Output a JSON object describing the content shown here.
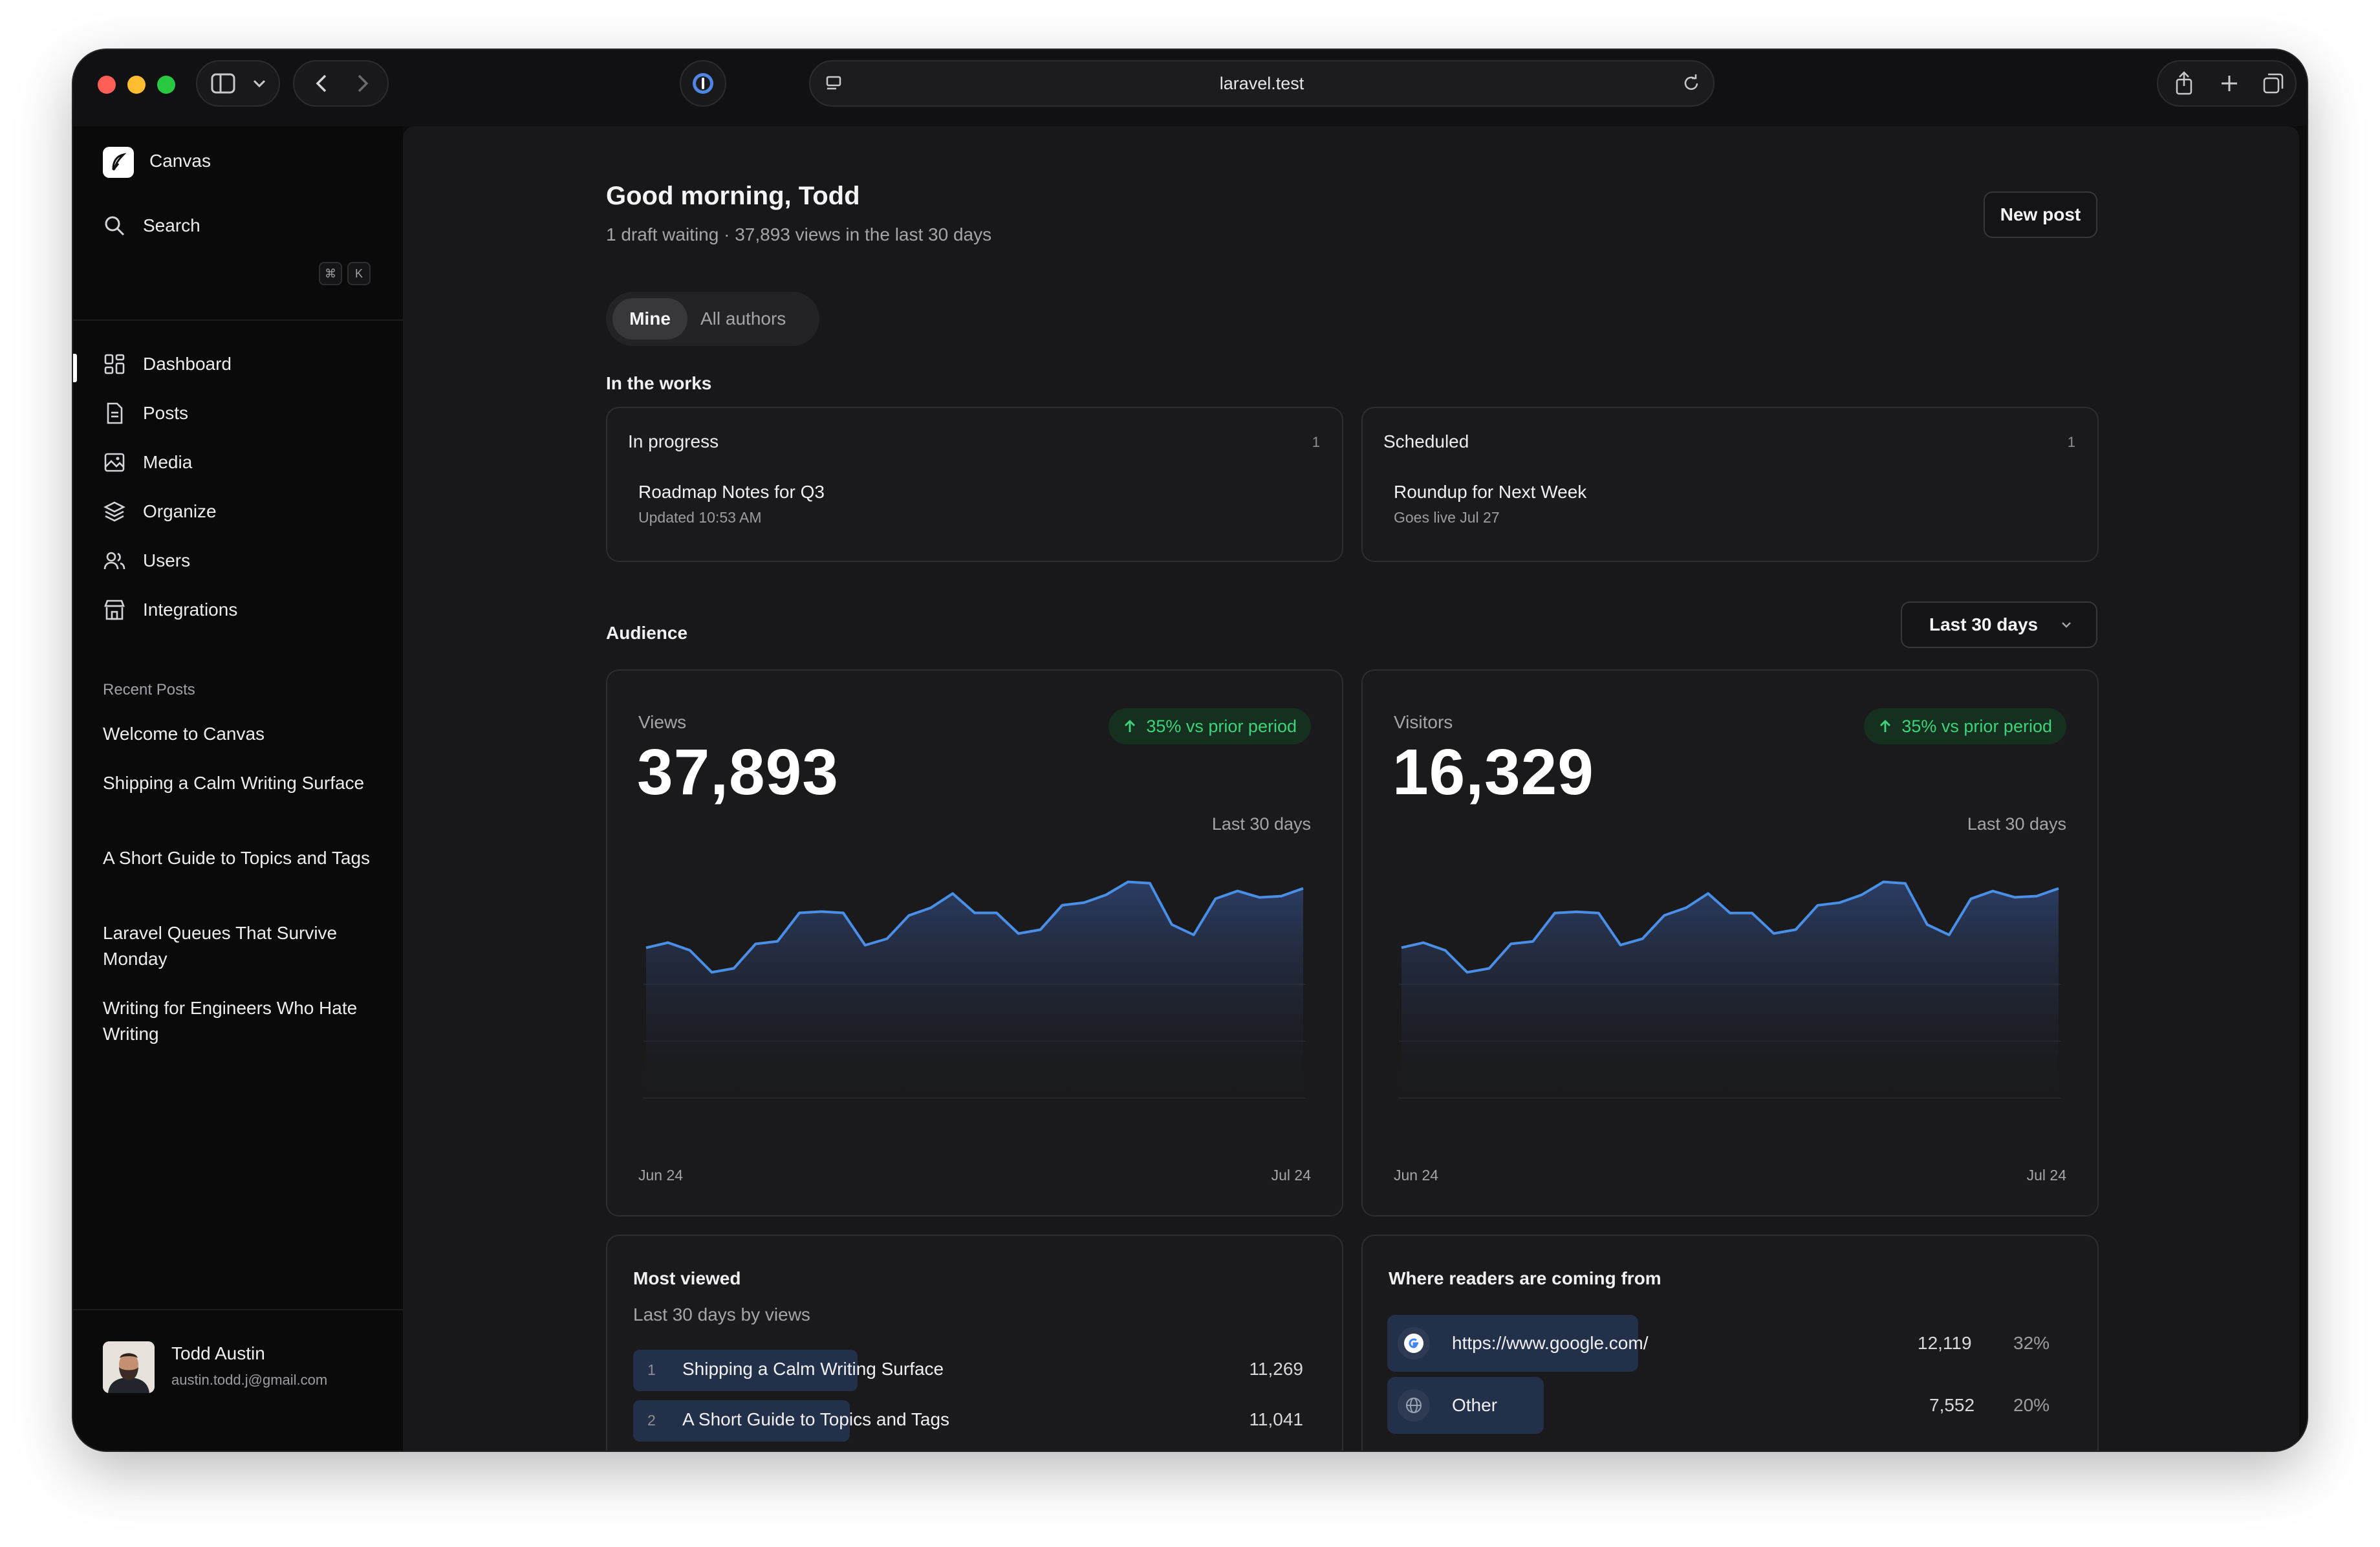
{
  "browser": {
    "url": "laravel.test"
  },
  "sidebar": {
    "app_name": "Canvas",
    "search_label": "Search",
    "search_shortcut": [
      "⌘",
      "K"
    ],
    "nav": [
      {
        "label": "Dashboard",
        "icon": "dashboard-icon",
        "active": true
      },
      {
        "label": "Posts",
        "icon": "document-icon"
      },
      {
        "label": "Media",
        "icon": "image-icon"
      },
      {
        "label": "Organize",
        "icon": "layers-icon"
      },
      {
        "label": "Users",
        "icon": "users-icon"
      },
      {
        "label": "Integrations",
        "icon": "store-icon"
      }
    ],
    "recent_title": "Recent Posts",
    "recent_posts": [
      "Welcome to Canvas",
      "Shipping a Calm Writing Surface",
      "A Short Guide to Topics and Tags",
      "Laravel Queues That Survive Monday",
      "Writing for Engineers Who Hate Writing"
    ],
    "user": {
      "name": "Todd Austin",
      "email": "austin.todd.j@gmail.com"
    }
  },
  "header": {
    "greeting": "Good morning, Todd",
    "subline": "1 draft waiting · 37,893 views in the last 30 days",
    "new_post": "New post"
  },
  "filter": {
    "mine": "Mine",
    "all": "All authors",
    "selected": "Mine"
  },
  "works": {
    "title": "In the works",
    "in_progress": {
      "label": "In progress",
      "count": "1",
      "item_title": "Roadmap Notes for Q3",
      "item_meta": "Updated 10:53 AM"
    },
    "scheduled": {
      "label": "Scheduled",
      "count": "1",
      "item_title": "Roundup for Next Week",
      "item_meta": "Goes live Jul 27"
    }
  },
  "audience": {
    "title": "Audience",
    "range": "Last 30 days",
    "views": {
      "label": "Views",
      "value": "37,893",
      "trend": "35% vs prior period",
      "range_label": "Last 30 days",
      "x_start": "Jun 24",
      "x_end": "Jul 24"
    },
    "visitors": {
      "label": "Visitors",
      "value": "16,329",
      "trend": "35% vs prior period",
      "range_label": "Last 30 days",
      "x_start": "Jun 24",
      "x_end": "Jul 24"
    }
  },
  "chart_data": [
    {
      "type": "area",
      "title": "Views",
      "x": [
        "Jun 24",
        "",
        "",
        "",
        "",
        "",
        "",
        "",
        "",
        "",
        "",
        "",
        "",
        "",
        "",
        "",
        "",
        "",
        "",
        "",
        "",
        "",
        "",
        "",
        "",
        "",
        "",
        "",
        "",
        "",
        "Jul 24"
      ],
      "values": [
        1150,
        1190,
        1130,
        960,
        990,
        1180,
        1200,
        1420,
        1430,
        1420,
        1170,
        1220,
        1400,
        1460,
        1570,
        1420,
        1420,
        1260,
        1290,
        1480,
        1500,
        1560,
        1660,
        1650,
        1330,
        1250,
        1530,
        1590,
        1540,
        1550,
        1610
      ],
      "xlabel": "",
      "ylabel": "",
      "color": "#4a8fe6"
    },
    {
      "type": "area",
      "title": "Visitors",
      "x": [
        "Jun 24",
        "",
        "",
        "",
        "",
        "",
        "",
        "",
        "",
        "",
        "",
        "",
        "",
        "",
        "",
        "",
        "",
        "",
        "",
        "",
        "",
        "",
        "",
        "",
        "",
        "",
        "",
        "",
        "",
        "",
        "Jul 24"
      ],
      "values": [
        500,
        517,
        491,
        417,
        430,
        513,
        521,
        617,
        621,
        617,
        509,
        530,
        609,
        635,
        683,
        617,
        617,
        548,
        561,
        643,
        652,
        678,
        722,
        717,
        578,
        543,
        665,
        691,
        670,
        674,
        700
      ],
      "xlabel": "",
      "ylabel": "",
      "color": "#4a8fe6"
    }
  ],
  "most_viewed": {
    "title": "Most viewed",
    "subtitle": "Last 30 days by views",
    "rows": [
      {
        "rank": "1",
        "title": "Shipping a Calm Writing Surface",
        "views": "11,269",
        "share": 0.3
      },
      {
        "rank": "2",
        "title": "A Short Guide to Topics and Tags",
        "views": "11,041",
        "share": 0.29
      }
    ]
  },
  "referrers": {
    "title": "Where readers are coming from",
    "rows": [
      {
        "source": "https://www.google.com/",
        "visits": "12,119",
        "pct": "32%",
        "icon": "google-icon",
        "share": 0.32
      },
      {
        "source": "Other",
        "visits": "7,552",
        "pct": "20%",
        "icon": "globe-icon",
        "share": 0.2
      }
    ]
  },
  "colors": {
    "accent": "#4a8fe6",
    "positive": "#3ed37a",
    "background": "#18181a"
  }
}
